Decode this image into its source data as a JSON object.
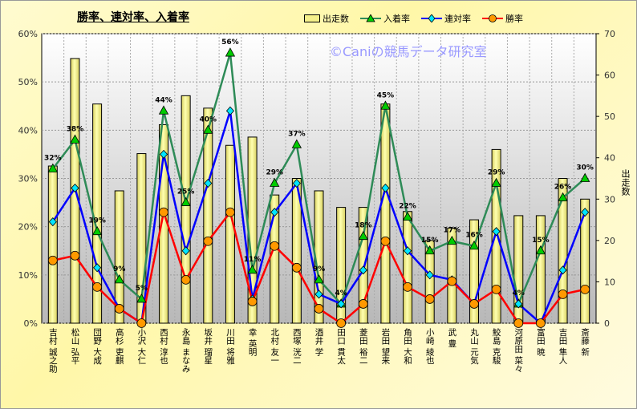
{
  "chart_data": {
    "type": "bar+line",
    "title": "勝率、連対率、入着率",
    "watermark": "©Caniの競馬データ研究室",
    "categories": [
      "吉村 誠之助",
      "松山 弘平",
      "団野 大成",
      "高杉 吏麒",
      "小沢 大仁",
      "西村 淳也",
      "永島 まなみ",
      "坂井 瑠星",
      "川田 将雅",
      "幸 英明",
      "北村 友一",
      "西塚 洸二",
      "酒井 学",
      "田口 貫太",
      "菱田 裕二",
      "岩田 望来",
      "角田 大和",
      "小崎 綾也",
      "武 豊",
      "丸山 元気",
      "鮫島 克駿",
      "河原田 菜々",
      "富田 暁",
      "吉田 隼人",
      "斎藤 新"
    ],
    "left_axis": {
      "ylim": [
        0,
        60
      ],
      "ticks": [
        "0%",
        "10%",
        "20%",
        "30%",
        "40%",
        "50%",
        "60%"
      ]
    },
    "right_axis": {
      "label": "出走数",
      "ylim": [
        0,
        70
      ],
      "ticks": [
        "0",
        "10",
        "20",
        "30",
        "40",
        "50",
        "60",
        "70"
      ]
    },
    "grid": true,
    "legend_position": "top",
    "series": [
      {
        "name": "出走数",
        "type": "bar",
        "axis": "right",
        "color": "#f5f08a",
        "values": [
          38,
          64,
          53,
          32,
          41,
          48,
          55,
          52,
          43,
          45,
          31,
          35,
          32,
          28,
          28,
          53,
          27,
          20,
          23,
          25,
          42,
          26,
          26,
          35,
          30
        ]
      },
      {
        "name": "入着率",
        "type": "line",
        "axis": "left",
        "color": "#2e8b57",
        "marker": "triangle",
        "marker_color": "#00cc00",
        "values": [
          32,
          38,
          19,
          9,
          5,
          44,
          25,
          40,
          56,
          11,
          29,
          37,
          9,
          4,
          18,
          45,
          22,
          15,
          17,
          16,
          29,
          4,
          15,
          26,
          30
        ],
        "labels": [
          "32%",
          "38%",
          "19%",
          "9%",
          "5%",
          "44%",
          "25%",
          "40%",
          "56%",
          "11%",
          "29%",
          "37%",
          "9%",
          "4%",
          "18%",
          "45%",
          "22%",
          "15%",
          "17%",
          "16%",
          "29%",
          "4%",
          "15%",
          "26%",
          "30%"
        ]
      },
      {
        "name": "連対率",
        "type": "line",
        "axis": "left",
        "color": "#0000ff",
        "marker": "diamond",
        "marker_color": "#00e5ff",
        "values": [
          21,
          28,
          11.5,
          3,
          0,
          35,
          15,
          29,
          44,
          5,
          23,
          29,
          6,
          4,
          11,
          28,
          15,
          10,
          9,
          4,
          19,
          4,
          0,
          11,
          23
        ]
      },
      {
        "name": "勝率",
        "type": "line",
        "axis": "left",
        "color": "#ff0000",
        "marker": "circle",
        "marker_color": "#ff9900",
        "values": [
          13,
          14,
          7.5,
          3,
          0,
          23,
          9,
          17,
          23,
          4.5,
          16,
          11.5,
          3,
          0,
          4,
          17,
          7.5,
          5,
          8.7,
          4,
          7,
          0,
          0,
          6,
          7
        ]
      }
    ]
  }
}
